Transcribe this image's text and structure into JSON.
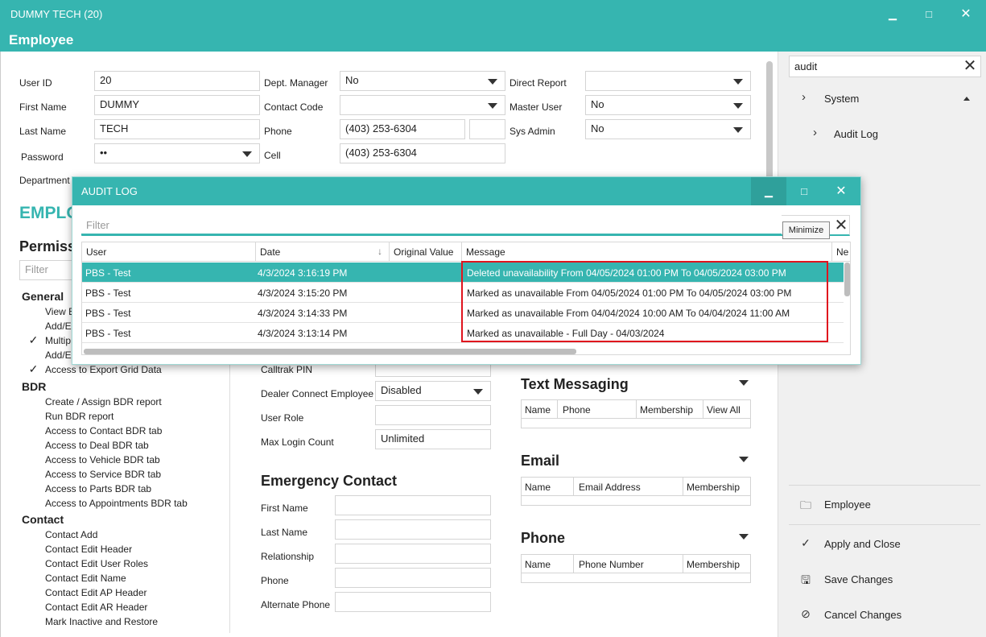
{
  "window": {
    "app_title": "DUMMY TECH (20)",
    "form_title": "Employee",
    "minimize_glyph": "▁",
    "maximize_glyph": "□",
    "close_glyph": "✕"
  },
  "employee": {
    "user_id_label": "User ID",
    "user_id": "20",
    "first_name_label": "First Name",
    "first_name": "DUMMY",
    "last_name_label": "Last Name",
    "last_name": "TECH",
    "password_label": "Password",
    "password": "••",
    "department_label": "Department",
    "dept_manager_label": "Dept. Manager",
    "dept_manager": "No",
    "contact_code_label": "Contact Code",
    "contact_code": "",
    "phone_label": "Phone",
    "phone": "(403) 253-6304",
    "cell_label": "Cell",
    "cell": "(403) 253-6304",
    "direct_report_label": "Direct Report",
    "direct_report": "",
    "master_user_label": "Master User",
    "master_user": "No",
    "sys_admin_label": "Sys Admin",
    "sys_admin": "No",
    "section_heading": "EMPLO",
    "calltrak_pin_label": "Calltrak PIN",
    "dealer_connect_label": "Dealer Connect Employee",
    "dealer_connect": "Disabled",
    "user_role_label": "User Role",
    "max_login_label": "Max Login Count",
    "max_login": "Unlimited"
  },
  "emergency": {
    "heading": "Emergency Contact",
    "first_name_label": "First Name",
    "last_name_label": "Last Name",
    "relationship_label": "Relationship",
    "phone_label": "Phone",
    "alternate_phone_label": "Alternate Phone"
  },
  "permissions": {
    "heading": "Permissi",
    "filter_placeholder": "Filter",
    "groups": [
      {
        "name": "General",
        "items": [
          {
            "label": "View E",
            "checked": false
          },
          {
            "label": "Add/E",
            "checked": false
          },
          {
            "label": "Multip",
            "checked": true
          },
          {
            "label": "Add/E",
            "checked": false
          },
          {
            "label": "Access to Export Grid Data",
            "checked": true
          }
        ]
      },
      {
        "name": "BDR",
        "items": [
          {
            "label": "Create / Assign BDR report",
            "checked": false
          },
          {
            "label": "Run BDR report",
            "checked": false
          },
          {
            "label": "Access to Contact BDR tab",
            "checked": false
          },
          {
            "label": "Access to Deal BDR tab",
            "checked": false
          },
          {
            "label": "Access to Vehicle BDR tab",
            "checked": false
          },
          {
            "label": "Access to Service BDR tab",
            "checked": false
          },
          {
            "label": "Access to Parts BDR tab",
            "checked": false
          },
          {
            "label": "Access to Appointments BDR tab",
            "checked": false
          }
        ]
      },
      {
        "name": "Contact",
        "items": [
          {
            "label": "Contact Add",
            "checked": false
          },
          {
            "label": "Contact Edit Header",
            "checked": false
          },
          {
            "label": "Contact Edit User Roles",
            "checked": false
          },
          {
            "label": "Contact Edit Name",
            "checked": false
          },
          {
            "label": "Contact Edit AP Header",
            "checked": false
          },
          {
            "label": "Contact Edit AR Header",
            "checked": false
          },
          {
            "label": "Mark Inactive and Restore",
            "checked": false
          }
        ]
      }
    ]
  },
  "text_messaging": {
    "heading": "Text Messaging",
    "columns": [
      "Name",
      "Phone",
      "Membership",
      "View All"
    ]
  },
  "email": {
    "heading": "Email",
    "columns": [
      "Name",
      "Email Address",
      "Membership"
    ]
  },
  "phone_section": {
    "heading": "Phone",
    "columns": [
      "Name",
      "Phone Number",
      "Membership"
    ]
  },
  "right_panel": {
    "search_value": "audit",
    "clear_glyph": "✕",
    "tree": [
      {
        "label": "System",
        "icon": "chevron-right-icon"
      },
      {
        "label": "Audit Log",
        "icon": "chevron-right-icon"
      }
    ],
    "actions": [
      {
        "label": "Employee",
        "icon": "folder-icon",
        "glyph": "🗀"
      },
      {
        "label": "Apply and Close",
        "icon": "check-icon",
        "glyph": "✓"
      },
      {
        "label": "Save Changes",
        "icon": "save-icon",
        "glyph": "🖫"
      },
      {
        "label": "Cancel Changes",
        "icon": "cancel-icon",
        "glyph": "⊘"
      }
    ]
  },
  "audit_log": {
    "title": "AUDIT LOG",
    "filter_placeholder": "Filter",
    "tooltip": "Minimize",
    "columns": [
      "User",
      "Date",
      "Original Value",
      "Message",
      "Ne"
    ],
    "rows": [
      {
        "user": "PBS - Test",
        "date": "4/3/2024 3:16:19 PM",
        "original": "",
        "message": "Deleted unavailability From 04/05/2024 01:00 PM To 04/05/2024 03:00 PM",
        "selected": true
      },
      {
        "user": "PBS - Test",
        "date": "4/3/2024 3:15:20 PM",
        "original": "",
        "message": "Marked as unavailable From 04/05/2024 01:00 PM To 04/05/2024 03:00 PM",
        "selected": false
      },
      {
        "user": "PBS - Test",
        "date": "4/3/2024 3:14:33 PM",
        "original": "",
        "message": "Marked as unavailable From 04/04/2024 10:00 AM To 04/04/2024 11:00 AM",
        "selected": false
      },
      {
        "user": "PBS - Test",
        "date": "4/3/2024 3:13:14 PM",
        "original": "",
        "message": "Marked as unavailable - Full Day - 04/03/2024",
        "selected": false
      }
    ]
  },
  "colors": {
    "accent": "#36b5b0",
    "highlight_box": "#e0141e"
  }
}
